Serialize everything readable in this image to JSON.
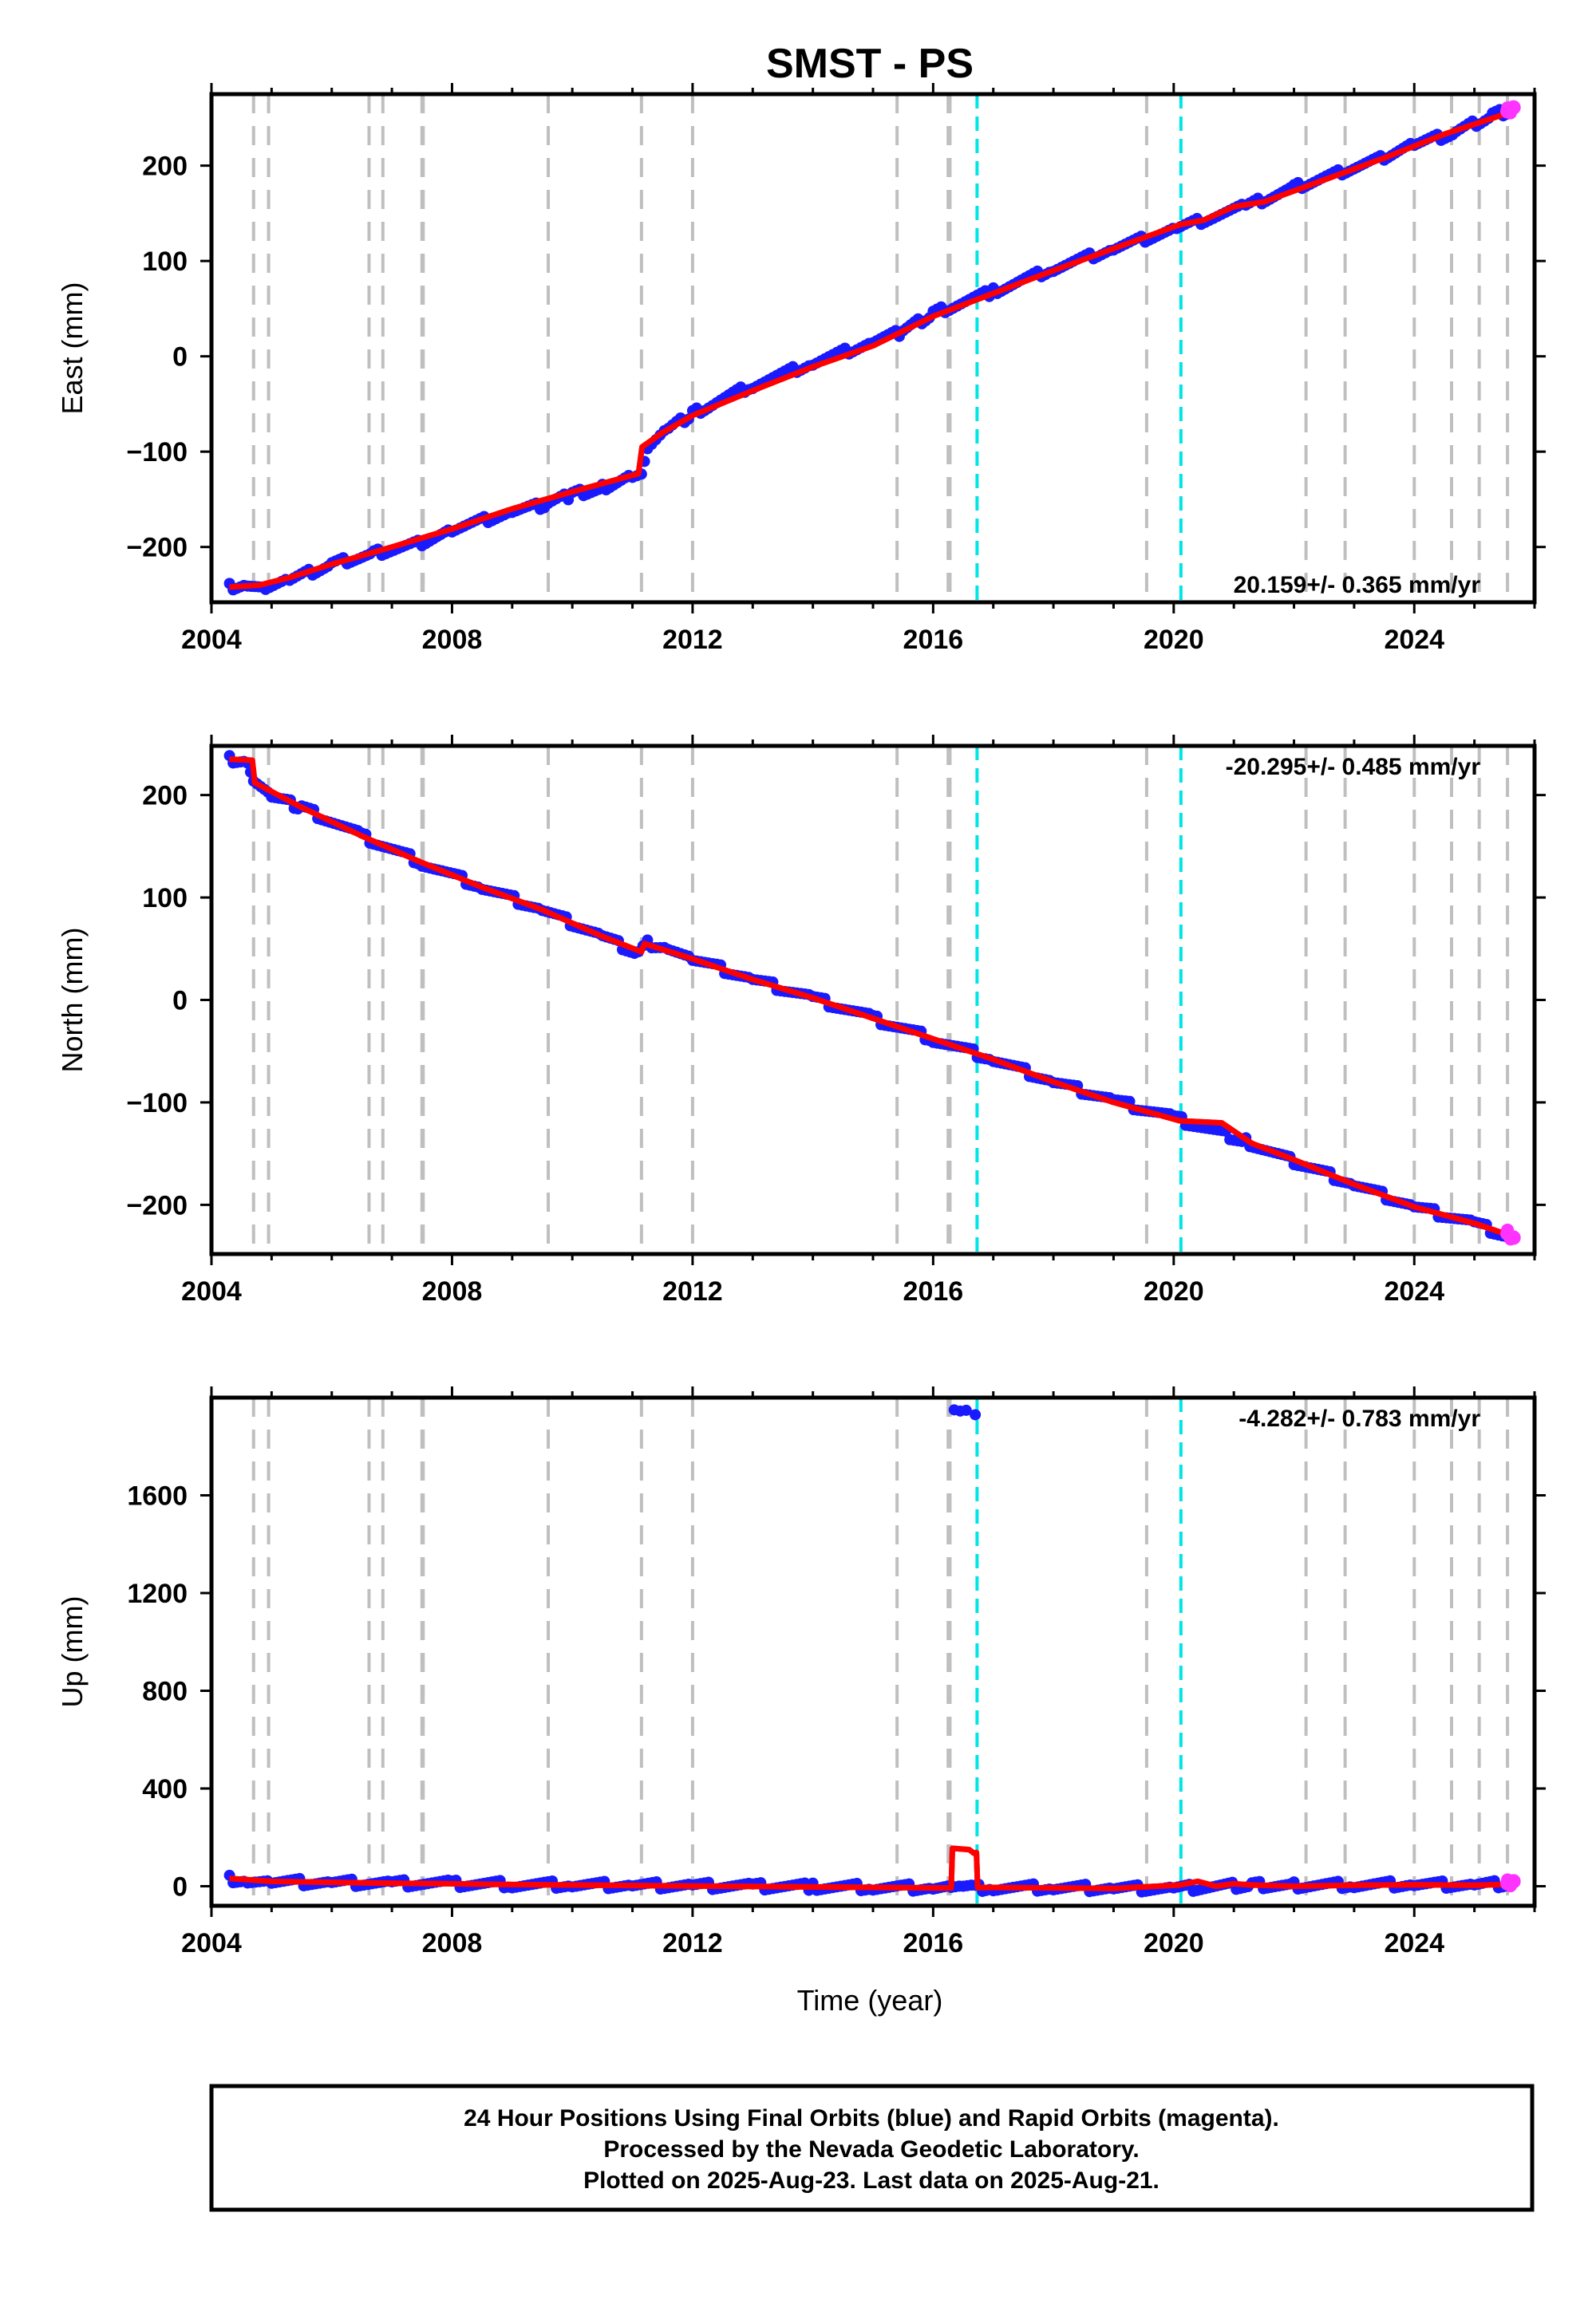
{
  "title": "SMST - PS",
  "colors": {
    "final_orbits": "#1a1aff",
    "rapid_orbits": "#ff33ff",
    "model": "#ff0000",
    "equipment_change": "#bfbfbf",
    "earthquake": "#00e5e5"
  },
  "footer": {
    "line1": "24 Hour Positions Using Final Orbits (blue) and Rapid Orbits (magenta).",
    "line2": "Processed by the Nevada Geodetic Laboratory.",
    "line3": "Plotted on 2025-Aug-23. Last data on 2025-Aug-21."
  },
  "chart_data": [
    {
      "type": "scatter",
      "ylabel": "East (mm)",
      "xlim": [
        2004.0,
        2026.0
      ],
      "ylim": [
        -258,
        275
      ],
      "xticks": [
        2004,
        2008,
        2012,
        2016,
        2020,
        2024
      ],
      "yticks": [
        -200,
        -100,
        0,
        100,
        200
      ],
      "ytick_labels": [
        "−200",
        "−100",
        "0",
        "100",
        "200"
      ],
      "xtick_labels": [
        "2004",
        "2008",
        "2012",
        "2016",
        "2020",
        "2024"
      ],
      "rate_label": "20.159+/- 0.365 mm/yr",
      "rate_position": "bottom-right",
      "series": [
        {
          "name": "Final Orbits",
          "color": "#1a1aff",
          "x": [
            2004.3,
            2004.6,
            2004.9,
            2005.3,
            2006.0,
            2006.7,
            2007.5,
            2008.0,
            2009.0,
            2009.6,
            2010.0,
            2010.5,
            2011.0,
            2011.15,
            2011.25,
            2011.6,
            2012.0,
            2013.0,
            2014.0,
            2015.0,
            2015.5,
            2016.0,
            2017.0,
            2018.0,
            2019.0,
            2020.05,
            2021.2,
            2022.0,
            2022.8,
            2023.5,
            2024.0,
            2024.7,
            2025.3,
            2025.6
          ],
          "y": [
            -242,
            -238,
            -243,
            -235,
            -218,
            -207,
            -195,
            -182,
            -163,
            -155,
            -145,
            -138,
            -124,
            -122,
            -97,
            -77,
            -60,
            -30,
            -7,
            15,
            26,
            45,
            68,
            92,
            113,
            134,
            157,
            177,
            194,
            208,
            222,
            235,
            253,
            258
          ]
        },
        {
          "name": "Rapid Orbits",
          "color": "#ff33ff",
          "x": [
            2025.55,
            2025.65
          ],
          "y": [
            257,
            261
          ]
        },
        {
          "name": "Model",
          "color": "#ff0000",
          "x": [
            2004.3,
            2004.8,
            2005.3,
            2006.0,
            2007.0,
            2008.0,
            2009.0,
            2010.0,
            2011.1,
            2011.16,
            2011.5,
            2012.0,
            2013.0,
            2014.0,
            2015.0,
            2016.0,
            2017.0,
            2018.0,
            2019.0,
            2020.1,
            2020.5,
            2021.0,
            2021.5,
            2022.5,
            2023.5,
            2024.5,
            2025.6
          ],
          "y": [
            -242,
            -240,
            -232,
            -218,
            -200,
            -181,
            -160,
            -142,
            -123,
            -95,
            -80,
            -62,
            -36,
            -11,
            11,
            42,
            66,
            90,
            113,
            138,
            143,
            157,
            162,
            185,
            208,
            233,
            256
          ]
        }
      ]
    },
    {
      "type": "scatter",
      "ylabel": "North (mm)",
      "xlim": [
        2004.0,
        2026.0
      ],
      "ylim": [
        -248,
        248
      ],
      "xticks": [
        2004,
        2008,
        2012,
        2016,
        2020,
        2024
      ],
      "yticks": [
        -200,
        -100,
        0,
        100,
        200
      ],
      "ytick_labels": [
        "−200",
        "−100",
        "0",
        "100",
        "200"
      ],
      "xtick_labels": [
        "2004",
        "2008",
        "2012",
        "2016",
        "2020",
        "2024"
      ],
      "rate_label": "-20.295+/- 0.485 mm/yr",
      "rate_position": "top-right",
      "series": [
        {
          "name": "Final Orbits",
          "color": "#1a1aff",
          "x": [
            2004.3,
            2004.6,
            2004.7,
            2005.0,
            2005.5,
            2006.5,
            2007.5,
            2008.5,
            2009.5,
            2010.5,
            2011.1,
            2011.25,
            2011.6,
            2012.0,
            2013.0,
            2014.0,
            2015.0,
            2016.0,
            2017.0,
            2018.0,
            2019.0,
            2020.0,
            2021.2,
            2022.0,
            2023.0,
            2024.0,
            2025.0,
            2025.6
          ],
          "y": [
            235,
            234,
            215,
            198,
            188,
            160,
            134,
            110,
            88,
            62,
            45,
            55,
            52,
            40,
            20,
            2,
            -18,
            -38,
            -58,
            -80,
            -98,
            -115,
            -138,
            -158,
            -180,
            -202,
            -218,
            -232
          ]
        },
        {
          "name": "Rapid Orbits",
          "color": "#ff33ff",
          "x": [
            2025.55,
            2025.65
          ],
          "y": [
            -228,
            -232
          ]
        },
        {
          "name": "Model",
          "color": "#ff0000",
          "x": [
            2004.3,
            2004.68,
            2004.72,
            2005.5,
            2006.5,
            2007.5,
            2008.5,
            2009.5,
            2010.5,
            2011.15,
            2011.2,
            2012.0,
            2013.0,
            2014.0,
            2015.0,
            2016.0,
            2017.0,
            2018.0,
            2019.0,
            2020.1,
            2020.8,
            2021.3,
            2022.0,
            2023.0,
            2024.0,
            2025.0,
            2025.6
          ],
          "y": [
            235,
            234,
            212,
            188,
            160,
            134,
            110,
            88,
            62,
            47,
            55,
            40,
            20,
            2,
            -18,
            -38,
            -58,
            -80,
            -100,
            -118,
            -120,
            -140,
            -156,
            -180,
            -202,
            -218,
            -230
          ]
        }
      ]
    },
    {
      "type": "scatter",
      "ylabel": "Up (mm)",
      "xlabel": "Time (year)",
      "xlim": [
        2004.0,
        2026.0
      ],
      "ylim": [
        -80,
        2000
      ],
      "xticks": [
        2004,
        2008,
        2012,
        2016,
        2020,
        2024
      ],
      "yticks": [
        0,
        400,
        800,
        1200,
        1600
      ],
      "ytick_labels": [
        "0",
        "400",
        "800",
        "1200",
        "1600"
      ],
      "xtick_labels": [
        "2004",
        "2008",
        "2012",
        "2016",
        "2020",
        "2024"
      ],
      "rate_label": "-4.282+/- 0.783 mm/yr",
      "rate_position": "top-right",
      "series": [
        {
          "name": "Final Orbits",
          "color": "#1a1aff",
          "x": [
            2004.3,
            2004.6,
            2005.0,
            2006.0,
            2007.0,
            2008.0,
            2009.0,
            2010.0,
            2011.0,
            2012.0,
            2013.0,
            2014.0,
            2015.0,
            2016.0,
            2016.3,
            2016.5,
            2016.7,
            2017.0,
            2018.0,
            2019.0,
            2020.0,
            2021.3,
            2022.0,
            2023.0,
            2024.0,
            2025.0,
            2025.6
          ],
          "y": [
            30,
            25,
            18,
            15,
            12,
            10,
            8,
            6,
            4,
            2,
            0,
            -2,
            -4,
            -6,
            -5,
            -6,
            -8,
            -4,
            -6,
            -8,
            -10,
            5,
            3,
            6,
            8,
            5,
            10
          ]
        },
        {
          "name": "Final Orbits (outliers)",
          "color": "#1a1aff",
          "x": [
            2016.35,
            2016.45,
            2016.55,
            2016.7
          ],
          "y": [
            1950,
            1945,
            1948,
            1930
          ]
        },
        {
          "name": "Rapid Orbits",
          "color": "#ff33ff",
          "x": [
            2025.55,
            2025.65
          ],
          "y": [
            12,
            20
          ]
        },
        {
          "name": "Model",
          "color": "#ff0000",
          "x": [
            2004.3,
            2005.0,
            2006.0,
            2007.0,
            2008.0,
            2009.0,
            2010.0,
            2011.0,
            2012.0,
            2013.0,
            2014.0,
            2015.0,
            2016.0,
            2016.3,
            2016.32,
            2016.6,
            2016.68,
            2016.72,
            2016.74,
            2017.0,
            2018.0,
            2019.0,
            2020.1,
            2020.4,
            2020.7,
            2021.0,
            2021.3,
            2022.0,
            2023.0,
            2024.0,
            2025.0,
            2025.6
          ],
          "y": [
            32,
            20,
            16,
            12,
            10,
            7,
            5,
            3,
            1,
            -1,
            -3,
            -5,
            -7,
            -7,
            155,
            150,
            135,
            138,
            -6,
            -5,
            -7,
            -9,
            5,
            20,
            0,
            10,
            5,
            0,
            4,
            6,
            4,
            8
          ]
        }
      ]
    }
  ],
  "event_lines": {
    "equipment_change_years": [
      2004.7,
      2004.95,
      2006.62,
      2006.85,
      2007.5,
      2007.52,
      2009.6,
      2011.15,
      2012.0,
      2015.4,
      2016.25,
      2016.28,
      2019.55,
      2022.2,
      2022.85,
      2024.0,
      2024.62,
      2025.08,
      2025.55
    ],
    "earthquake_years": [
      2016.73,
      2020.12
    ]
  }
}
